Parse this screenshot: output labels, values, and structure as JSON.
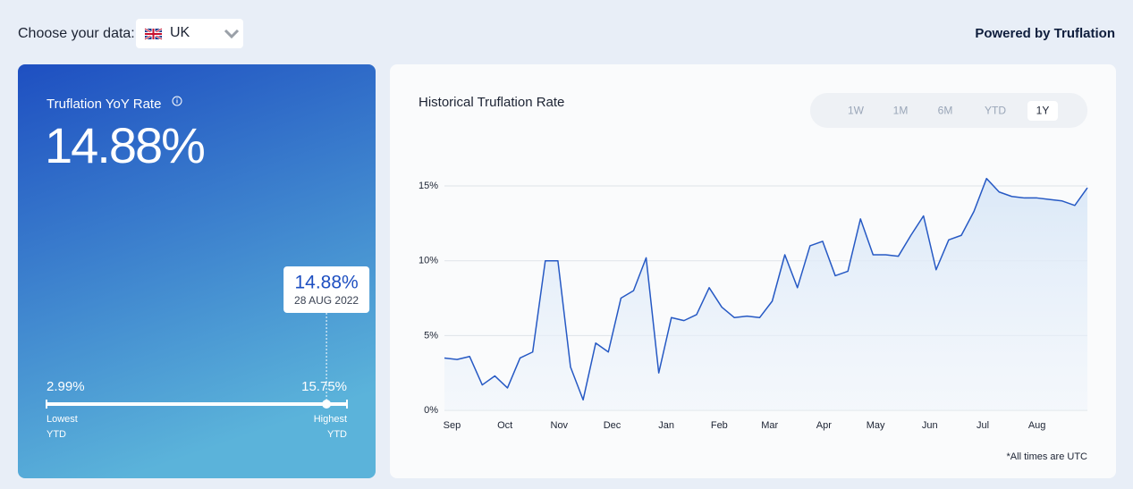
{
  "header": {
    "choose_label": "Choose your data:",
    "country": "UK",
    "powered_by": "Powered by Truflation"
  },
  "summary": {
    "title": "Truflation YoY Rate",
    "current": {
      "value": 14.88,
      "label": "14.88%"
    },
    "current_date": "28 AUG 2022",
    "low": {
      "value": 2.99,
      "label": "2.99%"
    },
    "high": {
      "value": 15.75,
      "label": "15.75%"
    },
    "low_caption": "Lowest",
    "high_caption": "Highest",
    "low_period": "YTD",
    "high_period": "YTD"
  },
  "ranges": {
    "buttons": [
      "1W",
      "1M",
      "6M",
      "YTD",
      "1Y"
    ],
    "active": 4
  },
  "chart_data": {
    "type": "line",
    "title": "Historical Truflation Rate",
    "series": [
      {
        "color": "#2659c4",
        "values": [
          3.5,
          3.4,
          3.6,
          1.7,
          2.3,
          1.5,
          3.5,
          3.9,
          10.0,
          10.0,
          2.9,
          0.7,
          4.5,
          3.9,
          7.5,
          8.0,
          10.2,
          2.5,
          6.2,
          6.0,
          6.4,
          8.2,
          6.9,
          6.2,
          6.3,
          6.2,
          7.3,
          10.4,
          8.2,
          11.0,
          11.3,
          9.0,
          9.3,
          12.8,
          10.4,
          10.4,
          10.3,
          11.7,
          13.0,
          9.4,
          11.4,
          11.7,
          13.3,
          15.5,
          14.6,
          14.3,
          14.2,
          14.2,
          14.1,
          14.0,
          13.7,
          14.88
        ]
      }
    ],
    "xlim": [
      0,
      51
    ],
    "xticks": [
      {
        "value": 0.6,
        "label": "Sep"
      },
      {
        "value": 4.8,
        "label": "Oct"
      },
      {
        "value": 9.1,
        "label": "Nov"
      },
      {
        "value": 13.3,
        "label": "Dec"
      },
      {
        "value": 17.6,
        "label": "Jan"
      },
      {
        "value": 21.8,
        "label": "Feb"
      },
      {
        "value": 25.8,
        "label": "Mar"
      },
      {
        "value": 30.1,
        "label": "Apr"
      },
      {
        "value": 34.2,
        "label": "May"
      },
      {
        "value": 38.5,
        "label": "Jun"
      },
      {
        "value": 42.7,
        "label": "Jul"
      },
      {
        "value": 47.0,
        "label": "Aug"
      }
    ],
    "ylim": [
      0,
      16
    ],
    "yticks": [
      {
        "value": 0,
        "label": "0%"
      },
      {
        "value": 5,
        "label": "5%"
      },
      {
        "value": 10,
        "label": "10%"
      },
      {
        "value": 15,
        "label": "15%"
      }
    ],
    "grid": true,
    "footnote": "*All times are UTC"
  }
}
